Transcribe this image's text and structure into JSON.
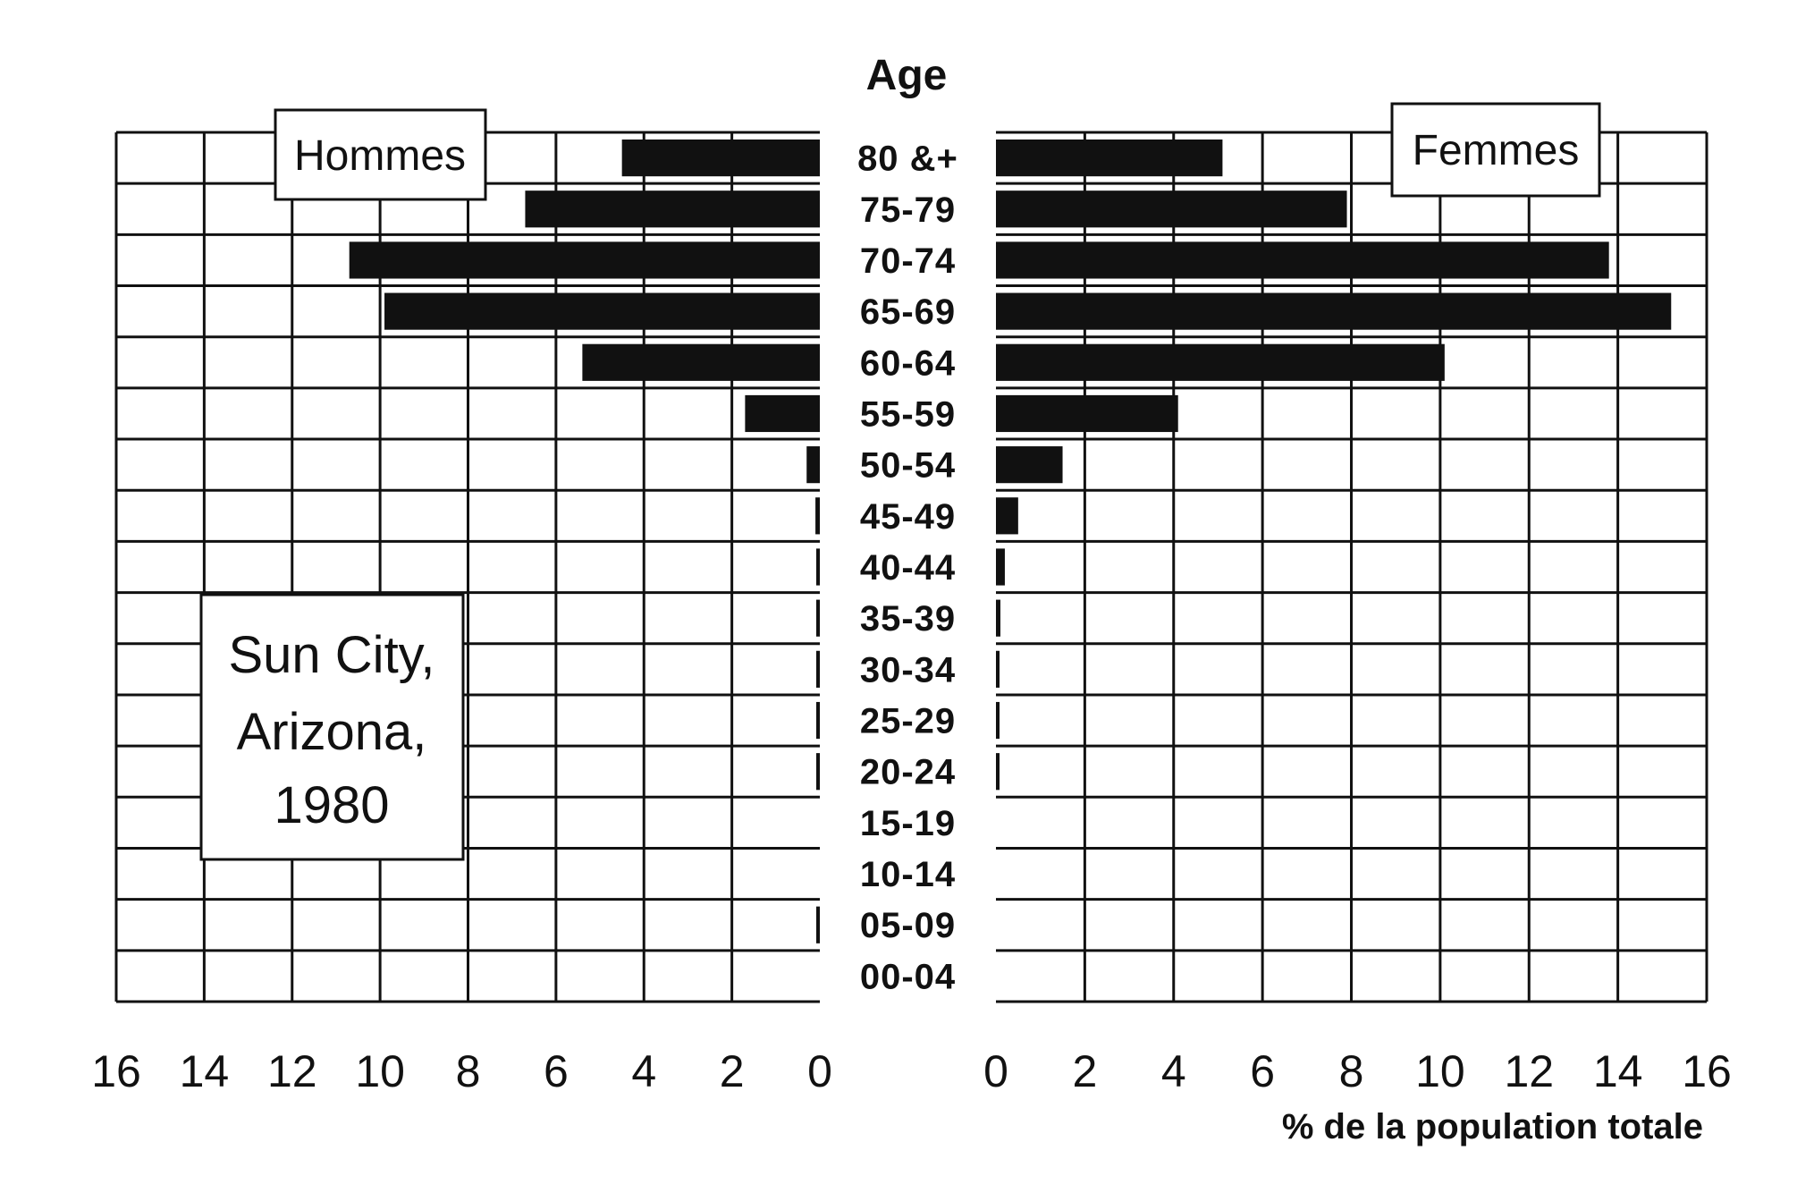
{
  "chart_data": {
    "type": "bar",
    "orientation": "horizontal-population-pyramid",
    "title": "Age",
    "place_label": [
      "Sun City,",
      "Arizona,",
      "1980"
    ],
    "left_label": "Hommes",
    "right_label": "Femmes",
    "xlabel": "% de la population totale",
    "categories": [
      "80 &+",
      "75-79",
      "70-74",
      "65-69",
      "60-64",
      "55-59",
      "50-54",
      "45-49",
      "40-44",
      "35-39",
      "30-34",
      "25-29",
      "20-24",
      "15-19",
      "10-14",
      "05-09",
      "00-04"
    ],
    "series": [
      {
        "name": "Hommes",
        "values": [
          4.5,
          6.7,
          10.7,
          9.9,
          5.4,
          1.7,
          0.3,
          0.1,
          0.05,
          0.05,
          0.05,
          0.05,
          0.05,
          0,
          0,
          0.05,
          0
        ]
      },
      {
        "name": "Femmes",
        "values": [
          5.1,
          7.9,
          13.8,
          15.2,
          10.1,
          4.1,
          1.5,
          0.5,
          0.2,
          0.1,
          0.05,
          0.05,
          0.05,
          0,
          0,
          0,
          0
        ]
      }
    ],
    "x_ticks_left": [
      "16",
      "14",
      "12",
      "10",
      "8",
      "6",
      "4",
      "2",
      "0"
    ],
    "x_ticks_right": [
      "0",
      "2",
      "4",
      "6",
      "8",
      "10",
      "12",
      "14",
      "16"
    ],
    "xlim": [
      0,
      16
    ],
    "grid": true,
    "colors": {
      "bars": "#111111",
      "background": "#ffffff"
    }
  }
}
